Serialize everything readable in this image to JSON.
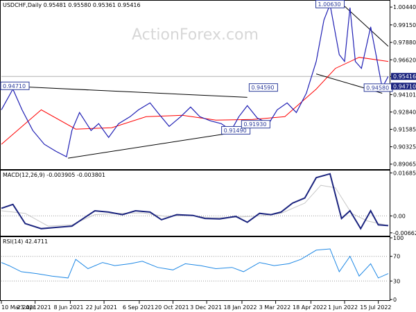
{
  "header": {
    "symbol_line": "USDCHF,Daily  0.95481 0.95580 0.95361 0.95416",
    "watermark": "ActionForex.com"
  },
  "colors": {
    "price": "#1f1fb4",
    "sma": "#ff0000",
    "macd": "#1a237e",
    "signal": "#c8c8c8",
    "rsi": "#1e88e5",
    "trendline": "#000000",
    "current_box": "#1a237e"
  },
  "chart_data": [
    {
      "type": "line",
      "panel": "price",
      "title": "USDCHF,Daily  0.95481 0.95580 0.95361 0.95416",
      "x_labels": [
        "10 Mar 2021",
        "23 Apr 2021",
        "8 Jun 2021",
        "22 Jul 2021",
        "6 Sep 2021",
        "20 Oct 2021",
        "3 Dec 2021",
        "18 Jan 2022",
        "3 Mar 2022",
        "18 Apr 2022",
        "1 Jun 2022",
        "15 Jul 2022"
      ],
      "x_range": [
        "2021-03-10",
        "2022-07-28"
      ],
      "ylim": [
        0.8875,
        1.0085
      ],
      "y_ticks": [
        1.0044,
        0.9915,
        0.9788,
        0.9662,
        0.95416,
        0.94101,
        0.9284,
        0.91585,
        0.90325,
        0.89065
      ],
      "y_tick_labels": [
        "1.00440",
        "0.99150",
        "0.97880",
        "0.96620",
        "0.95416",
        "0.94101",
        "0.92840",
        "0.91585",
        "0.90325",
        "0.89065"
      ],
      "current_value": "0.95416",
      "support_value": "0.94710",
      "series": [
        {
          "name": "close",
          "x": [
            "2021-03-10",
            "2021-03-25",
            "2021-04-06",
            "2021-04-20",
            "2021-05-05",
            "2021-05-20",
            "2021-06-03",
            "2021-06-10",
            "2021-06-20",
            "2021-07-05",
            "2021-07-15",
            "2021-07-28",
            "2021-08-10",
            "2021-08-25",
            "2021-09-05",
            "2021-09-20",
            "2021-09-30",
            "2021-10-15",
            "2021-10-30",
            "2021-11-12",
            "2021-11-24",
            "2021-12-08",
            "2021-12-22",
            "2022-01-04",
            "2022-01-14",
            "2022-01-25",
            "2022-02-07",
            "2022-02-22",
            "2022-03-05",
            "2022-03-18",
            "2022-03-30",
            "2022-04-12",
            "2022-04-25",
            "2022-05-05",
            "2022-05-13",
            "2022-05-25",
            "2022-06-01",
            "2022-06-08",
            "2022-06-15",
            "2022-06-23",
            "2022-07-05",
            "2022-07-12",
            "2022-07-20",
            "2022-07-28"
          ],
          "y": [
            0.93,
            0.945,
            0.93,
            0.915,
            0.905,
            0.9,
            0.896,
            0.915,
            0.928,
            0.915,
            0.92,
            0.91,
            0.92,
            0.925,
            0.93,
            0.935,
            0.928,
            0.918,
            0.925,
            0.932,
            0.925,
            0.922,
            0.92,
            0.915,
            0.925,
            0.933,
            0.924,
            0.92,
            0.93,
            0.935,
            0.928,
            0.942,
            0.965,
            0.995,
            1.0063,
            0.97,
            0.965,
            1.004,
            0.965,
            0.96,
            0.99,
            0.97,
            0.946,
            0.9542
          ]
        },
        {
          "name": "sma",
          "x": [
            "2021-03-10",
            "2021-05-01",
            "2021-06-15",
            "2021-08-01",
            "2021-09-15",
            "2021-11-01",
            "2021-12-15",
            "2022-02-01",
            "2022-03-15",
            "2022-04-25",
            "2022-05-20",
            "2022-06-20",
            "2022-07-28"
          ],
          "y": [
            0.905,
            0.93,
            0.916,
            0.917,
            0.925,
            0.926,
            0.9225,
            0.923,
            0.925,
            0.945,
            0.96,
            0.968,
            0.965
          ]
        },
        {
          "name": "trend_upper",
          "x": [
            "2021-03-20",
            "2022-01-25"
          ],
          "y": [
            0.9471,
            0.939
          ]
        },
        {
          "name": "trend_lower",
          "x": [
            "2021-06-05",
            "2022-01-25"
          ],
          "y": [
            0.895,
            0.915
          ]
        },
        {
          "name": "channel_upper",
          "x": [
            "2022-06-01",
            "2022-07-28"
          ],
          "y": [
            1.005,
            0.976
          ]
        },
        {
          "name": "channel_lower",
          "x": [
            "2022-04-25",
            "2022-07-20"
          ],
          "y": [
            0.956,
            0.942
          ]
        }
      ],
      "annotations": [
        {
          "text": "1.00630",
          "x": "2022-05-13",
          "y": 1.0063
        },
        {
          "text": "0.94590",
          "x": "2022-02-15",
          "y": 0.9459
        },
        {
          "text": "0.91490",
          "x": "2022-01-10",
          "y": 0.9149
        },
        {
          "text": "0.91930",
          "x": "2022-02-05",
          "y": 0.9193
        },
        {
          "text": "0.94580",
          "x": "2022-07-15",
          "y": 0.9458
        },
        {
          "text": "0.94710",
          "x": "2021-03-10",
          "y": 0.9471
        }
      ]
    },
    {
      "type": "line",
      "panel": "macd",
      "title": "MACD(12,26,9) -0.003905 -0.003801",
      "ylim": [
        -0.0075,
        0.0175
      ],
      "y_ticks": [
        0.016856,
        0.0,
        -0.006629
      ],
      "y_tick_labels": [
        "0.016856",
        "0.00",
        "-0.006629"
      ],
      "series": [
        {
          "name": "macd",
          "x": [
            "2021-03-10",
            "2021-03-25",
            "2021-04-10",
            "2021-05-01",
            "2021-05-20",
            "2021-06-10",
            "2021-06-25",
            "2021-07-10",
            "2021-07-28",
            "2021-08-15",
            "2021-09-01",
            "2021-09-20",
            "2021-10-05",
            "2021-10-25",
            "2021-11-15",
            "2021-12-01",
            "2021-12-20",
            "2022-01-10",
            "2022-01-25",
            "2022-02-10",
            "2022-02-25",
            "2022-03-10",
            "2022-03-25",
            "2022-04-10",
            "2022-04-25",
            "2022-05-13",
            "2022-05-28",
            "2022-06-08",
            "2022-06-22",
            "2022-07-05",
            "2022-07-15",
            "2022-07-28"
          ],
          "y": [
            0.003,
            0.0045,
            -0.003,
            -0.005,
            -0.0045,
            -0.004,
            -0.001,
            0.002,
            0.0015,
            0.0005,
            0.002,
            0.0015,
            -0.0015,
            0.0005,
            0.0002,
            -0.001,
            -0.0012,
            -0.0002,
            -0.0025,
            0.001,
            0.0005,
            0.0015,
            0.005,
            0.007,
            0.015,
            0.0165,
            -0.001,
            0.002,
            -0.005,
            0.002,
            -0.0035,
            -0.0038
          ]
        },
        {
          "name": "signal",
          "x": [
            "2021-03-10",
            "2021-04-10",
            "2021-05-10",
            "2021-06-10",
            "2021-07-10",
            "2021-08-10",
            "2021-09-10",
            "2021-10-10",
            "2021-11-10",
            "2021-12-10",
            "2022-01-10",
            "2022-02-10",
            "2022-03-10",
            "2022-04-10",
            "2022-05-01",
            "2022-05-20",
            "2022-06-10",
            "2022-07-01",
            "2022-07-28"
          ],
          "y": [
            0.002,
            0.001,
            -0.004,
            -0.0035,
            0.0005,
            0.001,
            0.0012,
            -0.0002,
            0.0002,
            -0.0008,
            -0.0005,
            0.0,
            0.001,
            0.005,
            0.012,
            0.011,
            0.001,
            -0.002,
            -0.0038
          ]
        }
      ]
    },
    {
      "type": "line",
      "panel": "rsi",
      "title": "RSI(14) 42.4711",
      "ylim": [
        0,
        100
      ],
      "y_ticks": [
        100,
        70,
        30,
        0
      ],
      "y_tick_labels": [
        "100",
        "70",
        "30",
        "0"
      ],
      "series": [
        {
          "name": "rsi",
          "x": [
            "2021-03-10",
            "2021-03-20",
            "2021-04-05",
            "2021-04-25",
            "2021-05-15",
            "2021-06-05",
            "2021-06-15",
            "2021-07-01",
            "2021-07-20",
            "2021-08-05",
            "2021-08-25",
            "2021-09-10",
            "2021-09-30",
            "2021-10-20",
            "2021-11-05",
            "2021-11-25",
            "2021-12-15",
            "2022-01-05",
            "2022-01-20",
            "2022-02-10",
            "2022-03-01",
            "2022-03-20",
            "2022-04-05",
            "2022-04-25",
            "2022-05-13",
            "2022-05-25",
            "2022-06-08",
            "2022-06-20",
            "2022-07-05",
            "2022-07-15",
            "2022-07-28"
          ],
          "y": [
            60,
            55,
            45,
            42,
            38,
            35,
            65,
            50,
            60,
            55,
            58,
            62,
            52,
            48,
            58,
            55,
            50,
            52,
            45,
            60,
            55,
            58,
            65,
            80,
            82,
            45,
            70,
            38,
            58,
            35,
            42
          ]
        }
      ]
    }
  ],
  "x_axis": {
    "labels": [
      "10 Mar 2021",
      "23 Apr 2021",
      "8 Jun 2021",
      "22 Jul 2021",
      "6 Sep 2021",
      "20 Oct 2021",
      "3 Dec 2021",
      "18 Jan 2022",
      "3 Mar 2022",
      "18 Apr 2022",
      "1 Jun 2022",
      "15 Jul 2022"
    ]
  }
}
